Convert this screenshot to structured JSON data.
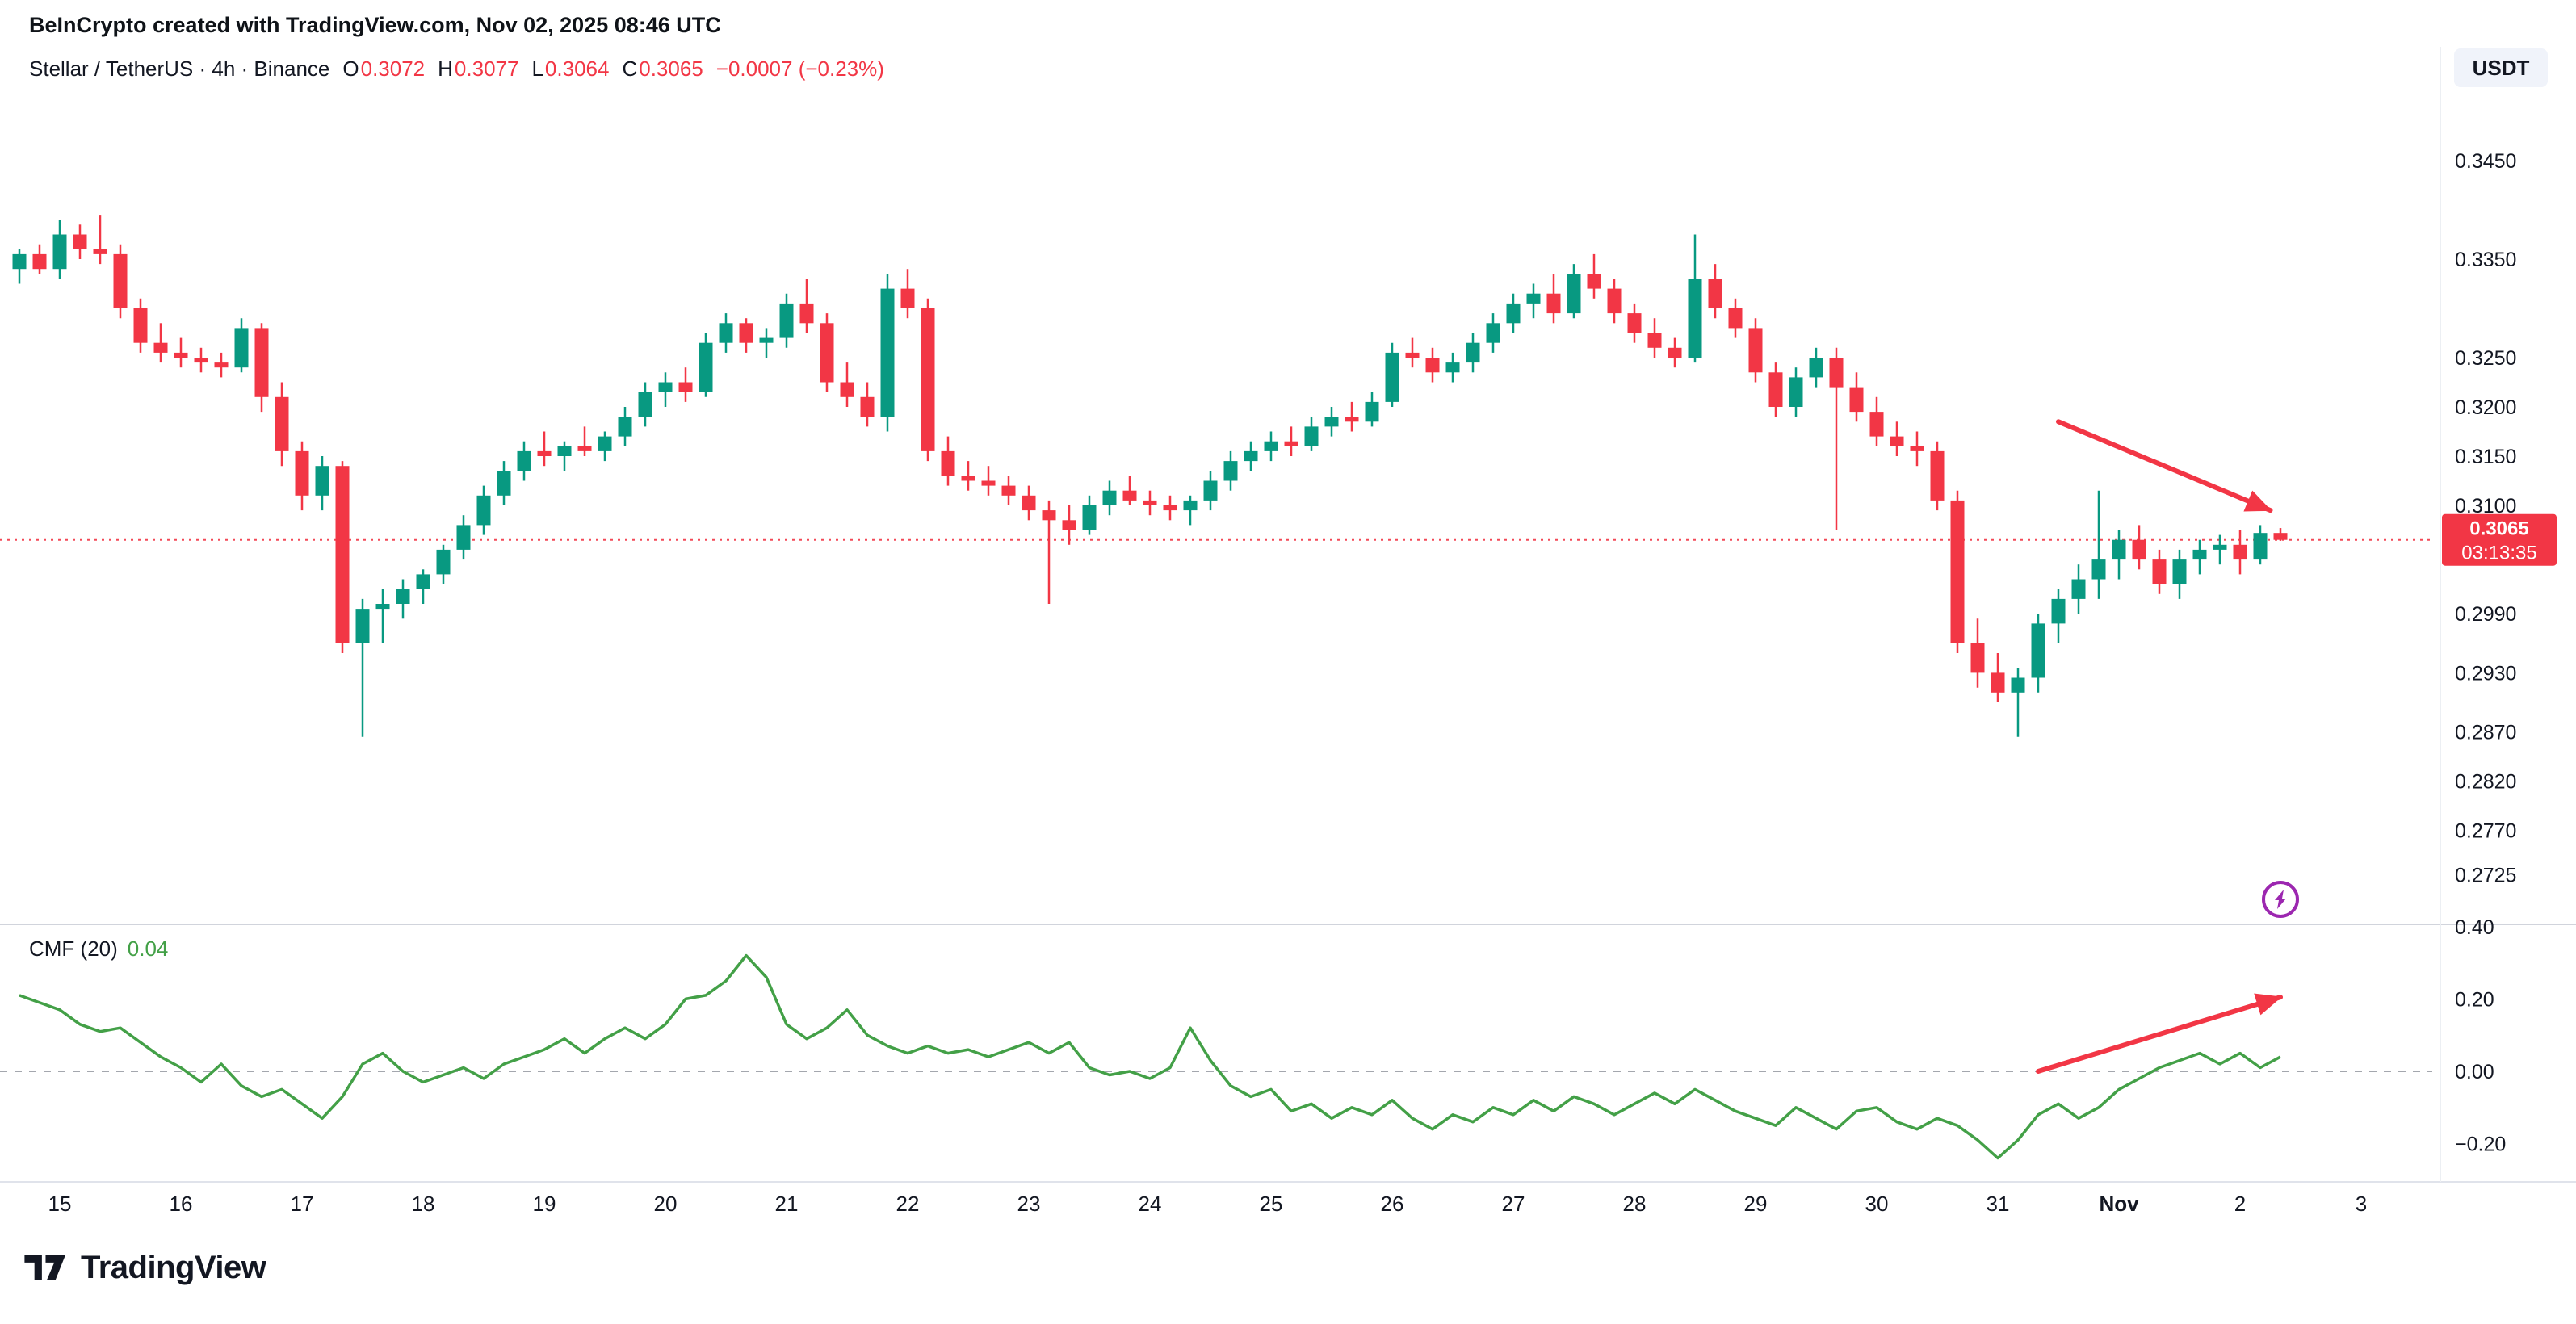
{
  "header": {
    "attribution": "BeInCrypto created with TradingView.com, Nov 02, 2025 08:46 UTC"
  },
  "legend": {
    "symbol_title": "Stellar / TetherUS · 4h · Binance",
    "o_label": "O",
    "o": "0.3072",
    "h_label": "H",
    "h": "0.3077",
    "l_label": "L",
    "l": "0.3064",
    "c_label": "C",
    "c": "0.3065",
    "change": "−0.0007 (−0.23%)"
  },
  "toolbar": {
    "currency_button": "USDT"
  },
  "indicator": {
    "label": "CMF (20)",
    "value": "0.04"
  },
  "price_axis": {
    "last_price_label": {
      "price": "0.3065",
      "countdown": "03:13:35"
    }
  },
  "time_axis": {
    "labels": [
      {
        "t": "15",
        "i": 2
      },
      {
        "t": "16",
        "i": 8
      },
      {
        "t": "17",
        "i": 14
      },
      {
        "t": "18",
        "i": 20
      },
      {
        "t": "19",
        "i": 26
      },
      {
        "t": "20",
        "i": 32
      },
      {
        "t": "21",
        "i": 38
      },
      {
        "t": "22",
        "i": 44
      },
      {
        "t": "23",
        "i": 50
      },
      {
        "t": "24",
        "i": 56
      },
      {
        "t": "25",
        "i": 62
      },
      {
        "t": "26",
        "i": 68
      },
      {
        "t": "27",
        "i": 74
      },
      {
        "t": "28",
        "i": 80
      },
      {
        "t": "29",
        "i": 86
      },
      {
        "t": "30",
        "i": 92
      },
      {
        "t": "31",
        "i": 98
      },
      {
        "t": "Nov",
        "i": 104,
        "b": true
      },
      {
        "t": "2",
        "i": 110
      },
      {
        "t": "3",
        "i": 116
      }
    ]
  },
  "footer": {
    "brand": "TradingView"
  },
  "colors": {
    "up": "#089981",
    "down": "#F23645",
    "cmf_line": "#43A047",
    "arrow": "#F23645",
    "last_label_bg": "#F23645",
    "price_line": "#F23645",
    "zero_line": "#9598a1",
    "axis_text": "#131722",
    "divider": "#d1d4dc",
    "accent_purple": "#9C27B0"
  },
  "annotations": {
    "price_line": {
      "price": 0.3065,
      "style": "dotted"
    },
    "main_arrow": {
      "from": {
        "i": 101,
        "price": 0.3185
      },
      "to": {
        "i": 111.5,
        "price": 0.3095
      }
    },
    "cmf_arrow": {
      "from": {
        "i": 100,
        "value": 0.0
      },
      "to": {
        "i": 112,
        "value": 0.205
      }
    },
    "flash_icon": {
      "i": 112,
      "price": 0.27
    }
  },
  "chart_data": [
    {
      "type": "candlestick",
      "title": "Stellar / TetherUS · 4h · Binance",
      "timeframe": "4h",
      "exchange": "Binance",
      "x_note": "4h candles, Oct 14 – Nov 2 2025, day labels on axis",
      "ylim": [
        0.268,
        0.351
      ],
      "y_ticks": [
        0.345,
        0.335,
        0.325,
        0.32,
        0.315,
        0.31,
        0.299,
        0.293,
        0.287,
        0.282,
        0.277,
        0.2725
      ],
      "last": {
        "open": 0.3072,
        "high": 0.3077,
        "low": 0.3064,
        "close": 0.3065,
        "change": -0.0007,
        "change_pct": -0.23
      },
      "ohlc": [
        [
          0.334,
          0.336,
          0.3325,
          0.3355
        ],
        [
          0.3355,
          0.3365,
          0.3335,
          0.334
        ],
        [
          0.334,
          0.339,
          0.333,
          0.3375
        ],
        [
          0.3375,
          0.3385,
          0.335,
          0.336
        ],
        [
          0.336,
          0.3395,
          0.3345,
          0.3355
        ],
        [
          0.3355,
          0.3365,
          0.329,
          0.33
        ],
        [
          0.33,
          0.331,
          0.3255,
          0.3265
        ],
        [
          0.3265,
          0.3285,
          0.3245,
          0.3255
        ],
        [
          0.3255,
          0.327,
          0.324,
          0.325
        ],
        [
          0.325,
          0.326,
          0.3235,
          0.3245
        ],
        [
          0.3245,
          0.3255,
          0.323,
          0.324
        ],
        [
          0.324,
          0.329,
          0.3235,
          0.328
        ],
        [
          0.328,
          0.3285,
          0.3195,
          0.321
        ],
        [
          0.321,
          0.3225,
          0.314,
          0.3155
        ],
        [
          0.3155,
          0.3165,
          0.3095,
          0.311
        ],
        [
          0.311,
          0.315,
          0.3095,
          0.314
        ],
        [
          0.314,
          0.3145,
          0.295,
          0.296
        ],
        [
          0.296,
          0.3005,
          0.2865,
          0.2995
        ],
        [
          0.2995,
          0.3015,
          0.296,
          0.3
        ],
        [
          0.3,
          0.3025,
          0.2985,
          0.3015
        ],
        [
          0.3015,
          0.3035,
          0.3,
          0.303
        ],
        [
          0.303,
          0.306,
          0.302,
          0.3055
        ],
        [
          0.3055,
          0.309,
          0.3045,
          0.308
        ],
        [
          0.308,
          0.312,
          0.307,
          0.311
        ],
        [
          0.311,
          0.3145,
          0.31,
          0.3135
        ],
        [
          0.3135,
          0.3165,
          0.3125,
          0.3155
        ],
        [
          0.3155,
          0.3175,
          0.314,
          0.315
        ],
        [
          0.315,
          0.3165,
          0.3135,
          0.316
        ],
        [
          0.316,
          0.318,
          0.315,
          0.3155
        ],
        [
          0.3155,
          0.3175,
          0.3145,
          0.317
        ],
        [
          0.317,
          0.32,
          0.316,
          0.319
        ],
        [
          0.319,
          0.3225,
          0.318,
          0.3215
        ],
        [
          0.3215,
          0.3235,
          0.32,
          0.3225
        ],
        [
          0.3225,
          0.324,
          0.3205,
          0.3215
        ],
        [
          0.3215,
          0.3275,
          0.321,
          0.3265
        ],
        [
          0.3265,
          0.3295,
          0.3255,
          0.3285
        ],
        [
          0.3285,
          0.329,
          0.3255,
          0.3265
        ],
        [
          0.3265,
          0.328,
          0.325,
          0.327
        ],
        [
          0.327,
          0.3315,
          0.326,
          0.3305
        ],
        [
          0.3305,
          0.333,
          0.3275,
          0.3285
        ],
        [
          0.3285,
          0.3295,
          0.3215,
          0.3225
        ],
        [
          0.3225,
          0.3245,
          0.32,
          0.321
        ],
        [
          0.321,
          0.3225,
          0.318,
          0.319
        ],
        [
          0.319,
          0.3335,
          0.3175,
          0.332
        ],
        [
          0.332,
          0.334,
          0.329,
          0.33
        ],
        [
          0.33,
          0.331,
          0.3145,
          0.3155
        ],
        [
          0.3155,
          0.317,
          0.312,
          0.313
        ],
        [
          0.313,
          0.3145,
          0.3115,
          0.3125
        ],
        [
          0.3125,
          0.314,
          0.311,
          0.312
        ],
        [
          0.312,
          0.313,
          0.31,
          0.311
        ],
        [
          0.311,
          0.312,
          0.3085,
          0.3095
        ],
        [
          0.3095,
          0.3105,
          0.3,
          0.3085
        ],
        [
          0.3085,
          0.31,
          0.306,
          0.3075
        ],
        [
          0.3075,
          0.311,
          0.307,
          0.31
        ],
        [
          0.31,
          0.3125,
          0.309,
          0.3115
        ],
        [
          0.3115,
          0.313,
          0.31,
          0.3105
        ],
        [
          0.3105,
          0.3115,
          0.309,
          0.31
        ],
        [
          0.31,
          0.311,
          0.3085,
          0.3095
        ],
        [
          0.3095,
          0.311,
          0.308,
          0.3105
        ],
        [
          0.3105,
          0.3135,
          0.3095,
          0.3125
        ],
        [
          0.3125,
          0.3155,
          0.3115,
          0.3145
        ],
        [
          0.3145,
          0.3165,
          0.3135,
          0.3155
        ],
        [
          0.3155,
          0.3175,
          0.3145,
          0.3165
        ],
        [
          0.3165,
          0.318,
          0.315,
          0.316
        ],
        [
          0.316,
          0.319,
          0.3155,
          0.318
        ],
        [
          0.318,
          0.32,
          0.317,
          0.319
        ],
        [
          0.319,
          0.3205,
          0.3175,
          0.3185
        ],
        [
          0.3185,
          0.3215,
          0.318,
          0.3205
        ],
        [
          0.3205,
          0.3265,
          0.32,
          0.3255
        ],
        [
          0.3255,
          0.327,
          0.324,
          0.325
        ],
        [
          0.325,
          0.326,
          0.3225,
          0.3235
        ],
        [
          0.3235,
          0.3255,
          0.3225,
          0.3245
        ],
        [
          0.3245,
          0.3275,
          0.3235,
          0.3265
        ],
        [
          0.3265,
          0.3295,
          0.3255,
          0.3285
        ],
        [
          0.3285,
          0.3315,
          0.3275,
          0.3305
        ],
        [
          0.3305,
          0.3325,
          0.329,
          0.3315
        ],
        [
          0.3315,
          0.3335,
          0.3285,
          0.3295
        ],
        [
          0.3295,
          0.3345,
          0.329,
          0.3335
        ],
        [
          0.3335,
          0.3355,
          0.331,
          0.332
        ],
        [
          0.332,
          0.333,
          0.3285,
          0.3295
        ],
        [
          0.3295,
          0.3305,
          0.3265,
          0.3275
        ],
        [
          0.3275,
          0.329,
          0.325,
          0.326
        ],
        [
          0.326,
          0.327,
          0.324,
          0.325
        ],
        [
          0.325,
          0.3375,
          0.3245,
          0.333
        ],
        [
          0.333,
          0.3345,
          0.329,
          0.33
        ],
        [
          0.33,
          0.331,
          0.327,
          0.328
        ],
        [
          0.328,
          0.329,
          0.3225,
          0.3235
        ],
        [
          0.3235,
          0.3245,
          0.319,
          0.32
        ],
        [
          0.32,
          0.324,
          0.319,
          0.323
        ],
        [
          0.323,
          0.326,
          0.322,
          0.325
        ],
        [
          0.325,
          0.326,
          0.3075,
          0.322
        ],
        [
          0.322,
          0.3235,
          0.3185,
          0.3195
        ],
        [
          0.3195,
          0.321,
          0.316,
          0.317
        ],
        [
          0.317,
          0.3185,
          0.315,
          0.316
        ],
        [
          0.316,
          0.3175,
          0.314,
          0.3155
        ],
        [
          0.3155,
          0.3165,
          0.3095,
          0.3105
        ],
        [
          0.3105,
          0.3115,
          0.295,
          0.296
        ],
        [
          0.296,
          0.2985,
          0.2915,
          0.293
        ],
        [
          0.293,
          0.295,
          0.29,
          0.291
        ],
        [
          0.291,
          0.2935,
          0.2865,
          0.2925
        ],
        [
          0.2925,
          0.299,
          0.291,
          0.298
        ],
        [
          0.298,
          0.3015,
          0.296,
          0.3005
        ],
        [
          0.3005,
          0.304,
          0.299,
          0.3025
        ],
        [
          0.3025,
          0.3115,
          0.3005,
          0.3045
        ],
        [
          0.3045,
          0.3075,
          0.3025,
          0.3065
        ],
        [
          0.3065,
          0.308,
          0.3035,
          0.3045
        ],
        [
          0.3045,
          0.3055,
          0.301,
          0.302
        ],
        [
          0.302,
          0.3055,
          0.3005,
          0.3045
        ],
        [
          0.3045,
          0.3065,
          0.303,
          0.3055
        ],
        [
          0.3055,
          0.307,
          0.304,
          0.306
        ],
        [
          0.306,
          0.3075,
          0.303,
          0.3045
        ],
        [
          0.3045,
          0.308,
          0.304,
          0.3072
        ],
        [
          0.3072,
          0.3077,
          0.3064,
          0.3065
        ]
      ]
    },
    {
      "type": "line",
      "name": "CMF (20)",
      "last_value": 0.04,
      "ylim": [
        -0.28,
        0.42
      ],
      "y_ticks": [
        0.4,
        0.2,
        0.0,
        -0.2
      ],
      "zero_line": 0.0,
      "values": [
        0.21,
        0.19,
        0.17,
        0.13,
        0.11,
        0.12,
        0.08,
        0.04,
        0.01,
        -0.03,
        0.02,
        -0.04,
        -0.07,
        -0.05,
        -0.09,
        -0.13,
        -0.07,
        0.02,
        0.05,
        0.0,
        -0.03,
        -0.01,
        0.01,
        -0.02,
        0.02,
        0.04,
        0.06,
        0.09,
        0.05,
        0.09,
        0.12,
        0.09,
        0.13,
        0.2,
        0.21,
        0.25,
        0.32,
        0.26,
        0.13,
        0.09,
        0.12,
        0.17,
        0.1,
        0.07,
        0.05,
        0.07,
        0.05,
        0.06,
        0.04,
        0.06,
        0.08,
        0.05,
        0.08,
        0.01,
        -0.01,
        0.0,
        -0.02,
        0.01,
        0.12,
        0.03,
        -0.04,
        -0.07,
        -0.05,
        -0.11,
        -0.09,
        -0.13,
        -0.1,
        -0.12,
        -0.08,
        -0.13,
        -0.16,
        -0.12,
        -0.14,
        -0.1,
        -0.12,
        -0.08,
        -0.11,
        -0.07,
        -0.09,
        -0.12,
        -0.09,
        -0.06,
        -0.09,
        -0.05,
        -0.08,
        -0.11,
        -0.13,
        -0.15,
        -0.1,
        -0.13,
        -0.16,
        -0.11,
        -0.1,
        -0.14,
        -0.16,
        -0.13,
        -0.15,
        -0.19,
        -0.24,
        -0.19,
        -0.12,
        -0.09,
        -0.13,
        -0.1,
        -0.05,
        -0.02,
        0.01,
        0.03,
        0.05,
        0.02,
        0.05,
        0.01,
        0.04
      ]
    }
  ]
}
